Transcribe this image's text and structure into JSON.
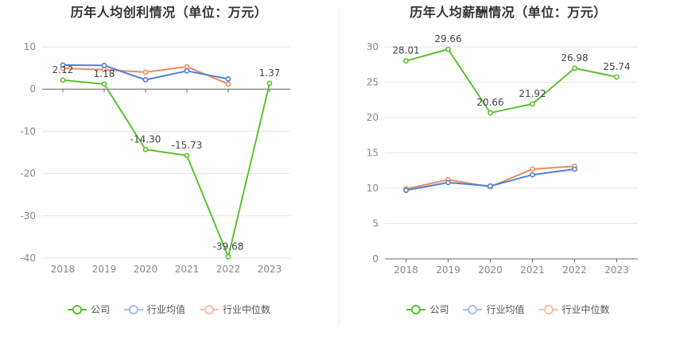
{
  "chart_data": [
    {
      "type": "line",
      "title": "历年人均创利情况（单位：万元）",
      "categories": [
        "2018",
        "2019",
        "2020",
        "2021",
        "2022",
        "2023"
      ],
      "ylim": [
        -40,
        10
      ],
      "yticks": [
        10,
        0,
        -10,
        -20,
        -30,
        -40
      ],
      "grid": true,
      "legend_position": "bottom",
      "series": [
        {
          "name": "公司",
          "color": "#5ac22f",
          "values": [
            2.12,
            1.18,
            -14.3,
            -15.73,
            -39.68,
            1.37
          ],
          "labels": [
            "2.12",
            "1.18",
            "-14.30",
            "-15.73",
            "-39.68",
            "1.37"
          ]
        },
        {
          "name": "行业均值",
          "color": "#4f7fd9",
          "values": [
            5.7,
            5.6,
            2.2,
            4.3,
            2.4,
            null
          ]
        },
        {
          "name": "行业中位数",
          "color": "#f08a5d",
          "values": [
            4.9,
            4.6,
            4.0,
            5.3,
            1.2,
            null
          ]
        }
      ]
    },
    {
      "type": "line",
      "title": "历年人均薪酬情况（单位：万元）",
      "categories": [
        "2018",
        "2019",
        "2020",
        "2021",
        "2022",
        "2023"
      ],
      "ylim": [
        0,
        30
      ],
      "yticks": [
        30,
        25,
        20,
        15,
        10,
        5,
        0
      ],
      "grid": true,
      "legend_position": "bottom",
      "series": [
        {
          "name": "公司",
          "color": "#5ac22f",
          "values": [
            28.01,
            29.66,
            20.66,
            21.92,
            26.98,
            25.74
          ],
          "labels": [
            "28.01",
            "29.66",
            "20.66",
            "21.92",
            "26.98",
            "25.74"
          ]
        },
        {
          "name": "行业均值",
          "color": "#4f7fd9",
          "values": [
            9.7,
            10.8,
            10.3,
            11.9,
            12.7,
            null
          ]
        },
        {
          "name": "行业中位数",
          "color": "#f08a5d",
          "values": [
            9.9,
            11.2,
            10.2,
            12.7,
            13.1,
            null
          ]
        }
      ]
    }
  ]
}
